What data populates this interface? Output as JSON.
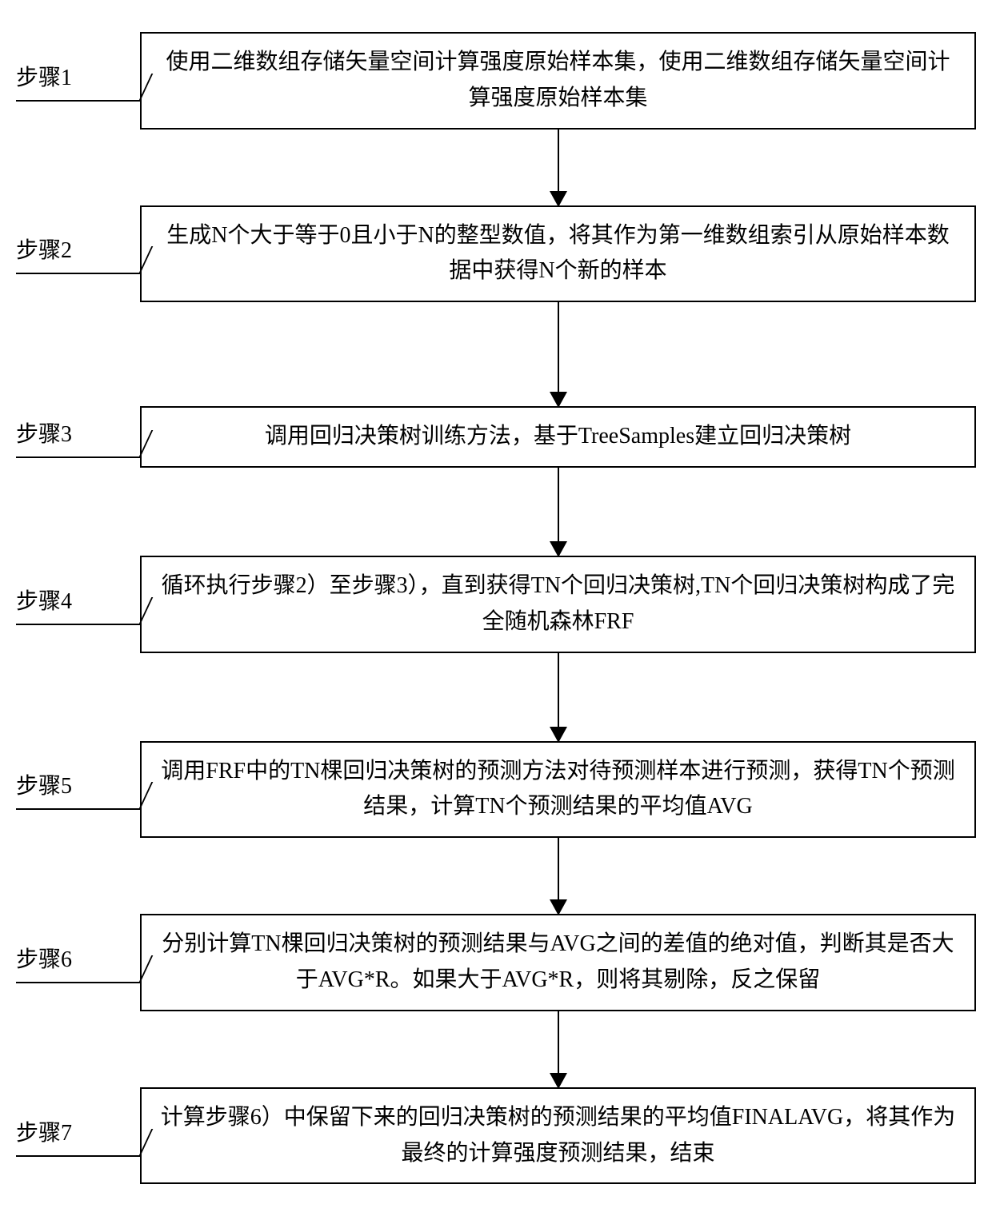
{
  "flowchart": {
    "background_color": "#ffffff",
    "border_color": "#000000",
    "text_color": "#000000",
    "fontsize": 28,
    "arrow_heights": [
      95,
      130,
      110,
      110,
      95,
      95
    ],
    "steps": [
      {
        "label": "步骤1",
        "text": "使用二维数组存储矢量空间计算强度原始样本集，使用二维数组存储矢量空间计算强度原始样本集"
      },
      {
        "label": "步骤2",
        "text": "生成N个大于等于0且小于N的整型数值，将其作为第一维数组索引从原始样本数据中获得N个新的样本"
      },
      {
        "label": "步骤3",
        "text": "调用回归决策树训练方法，基于TreeSamples建立回归决策树"
      },
      {
        "label": "步骤4",
        "text": "循环执行步骤2）至步骤3），直到获得TN个回归决策树,TN个回归决策树构成了完全随机森林FRF"
      },
      {
        "label": "步骤5",
        "text": "调用FRF中的TN棵回归决策树的预测方法对待预测样本进行预测，获得TN个预测结果，计算TN个预测结果的平均值AVG"
      },
      {
        "label": "步骤6",
        "text": "分别计算TN棵回归决策树的预测结果与AVG之间的差值的绝对值，判断其是否大于AVG*R。如果大于AVG*R，则将其剔除，反之保留"
      },
      {
        "label": "步骤7",
        "text": "计算步骤6）中保留下来的回归决策树的预测结果的平均值FINALAVG，将其作为最终的计算强度预测结果，结束"
      }
    ]
  }
}
